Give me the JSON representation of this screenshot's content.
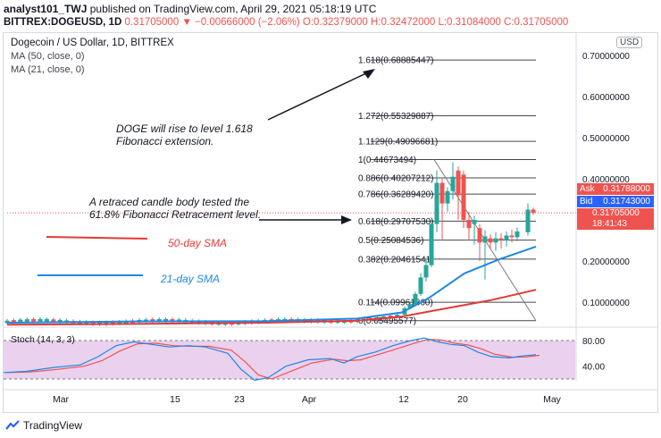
{
  "header": {
    "author": "analyst101_TWJ",
    "published_text": "published on TradingView.com, April 29, 2021 05:18:19 UTC",
    "symbol": "BITTREX:DOGEUSD, 1D",
    "last_price": "0.31705000",
    "change_arrow": "▼",
    "change": "−0.00666000 (−2.06%)",
    "open": "O:0.32379000",
    "high": "H:0.32472000",
    "low": "L:0.31084000",
    "close": "C:0.31705000"
  },
  "legend": {
    "title": "Dogecoin / US Dollar, 1D, BITTREX",
    "ma50": "MA (50, close, 0)",
    "ma21": "MA (21, close, 0)"
  },
  "currency_button": "USD",
  "price_axis": {
    "ticks": [
      "0.70000000",
      "0.60000000",
      "0.50000000",
      "0.40000000",
      "0.20000000",
      "0.10000000"
    ],
    "ask_label": "Ask",
    "ask_value": "0.31788000",
    "bid_label": "Bid",
    "bid_value": "0.31743000",
    "last_value": "0.31705000",
    "countdown": "18:41:43"
  },
  "time_axis": {
    "labels": [
      "Mar",
      "15",
      "23",
      "Apr",
      "12",
      "20",
      "May"
    ]
  },
  "fib_levels": [
    {
      "label": "1.618(0.68885447)",
      "value": 0.68885447
    },
    {
      "label": "1.272(0.55329887)",
      "value": 0.55329887
    },
    {
      "label": "1.1129(0.49096681)",
      "value": 0.49096681
    },
    {
      "label": "1(0.44673494)",
      "value": 0.44673494
    },
    {
      "label": "0.886(0.40207212)",
      "value": 0.40207212
    },
    {
      "label": "0.786(0.36289420)",
      "value": 0.3628942
    },
    {
      "label": "0.618(0.29707530)",
      "value": 0.2970753
    },
    {
      "label": "0.5(0.25084536)",
      "value": 0.25084536
    },
    {
      "label": "0.382(0.20461541)",
      "value": 0.20461541
    },
    {
      "label": "0.114(0.09961860)",
      "value": 0.0996186
    },
    {
      "label": "0(0.05495577)",
      "value": 0.05495577
    }
  ],
  "annotations": {
    "rise_line1": "DOGE will rise to level 1.618",
    "rise_line2": "Fibonacci extension.",
    "retrace_line1": "A retraced candle body tested the",
    "retrace_line2": "61.8% Fibonacci Retracement level.",
    "sma50": "50-day SMA",
    "sma21": "21-day SMA"
  },
  "colors": {
    "up": "#26a69a",
    "down": "#ef5350",
    "ma50": "#e53935",
    "ma21": "#1e88e5",
    "stoch_k": "#1e88e5",
    "stoch_d": "#ef5350",
    "stoch_band": "#e1bee7"
  },
  "stoch": {
    "title": "Stoch (14, 3, 3)",
    "ticks": [
      "80.00",
      "40.00"
    ]
  },
  "footer": {
    "brand": "TradingView"
  }
}
